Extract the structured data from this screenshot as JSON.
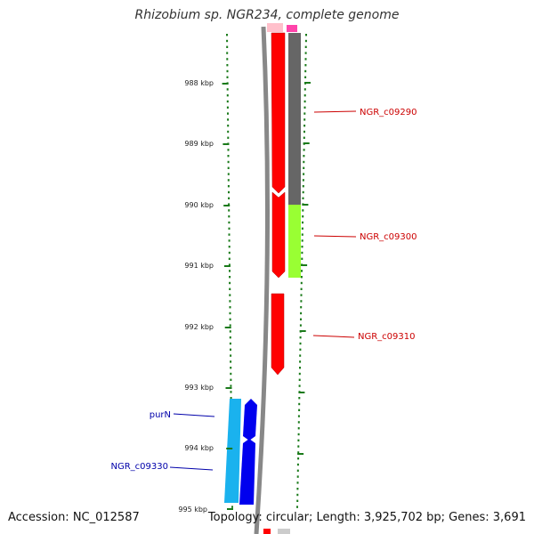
{
  "title": "Rhizobium sp. NGR234, complete genome",
  "accession": "Accession: NC_012587",
  "summary": "Topology: circular; Length: 3,925,702 bp; Genes: 3,691",
  "kbp_ticks": [
    "988 kbp",
    "989 kbp",
    "990 kbp",
    "991 kbp",
    "992 kbp",
    "993 kbp",
    "994 kbp",
    "995 kbp"
  ],
  "genes": [
    {
      "name": "NGR_c09290",
      "color": "#cc0000"
    },
    {
      "name": "NGR_c09300",
      "color": "#cc0000"
    },
    {
      "name": "NGR_c09310",
      "color": "#cc0000"
    },
    {
      "name": "purN",
      "color": "#0000aa"
    },
    {
      "name": "NGR_c09330",
      "color": "#0000aa"
    }
  ],
  "colors": {
    "red_feature": "#ff0000",
    "gray_feature": "#666666",
    "lime_feature": "#99ff33",
    "blue_feature": "#0000ee",
    "cyan_feature": "#1ab2ee",
    "tick_green": "#1a7a1a"
  }
}
